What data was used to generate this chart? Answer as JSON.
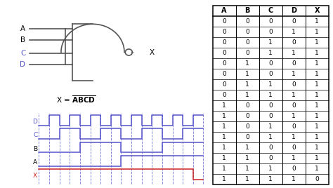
{
  "bg_color": "#ffffff",
  "gate_color": "#555555",
  "blue_color": "#5555cc",
  "red_color": "#cc2222",
  "truth_table": {
    "headers": [
      "A",
      "B",
      "C",
      "D",
      "X"
    ],
    "rows": [
      [
        0,
        0,
        0,
        0,
        1
      ],
      [
        0,
        0,
        0,
        1,
        1
      ],
      [
        0,
        0,
        1,
        0,
        1
      ],
      [
        0,
        0,
        1,
        1,
        1
      ],
      [
        0,
        1,
        0,
        0,
        1
      ],
      [
        0,
        1,
        0,
        1,
        1
      ],
      [
        0,
        1,
        1,
        0,
        1
      ],
      [
        0,
        1,
        1,
        1,
        1
      ],
      [
        1,
        0,
        0,
        0,
        1
      ],
      [
        1,
        0,
        0,
        1,
        1
      ],
      [
        1,
        0,
        1,
        0,
        1
      ],
      [
        1,
        0,
        1,
        1,
        1
      ],
      [
        1,
        1,
        0,
        0,
        1
      ],
      [
        1,
        1,
        0,
        1,
        1
      ],
      [
        1,
        1,
        1,
        0,
        1
      ],
      [
        1,
        1,
        1,
        1,
        0
      ]
    ]
  },
  "timing": {
    "n_steps": 16,
    "D": [
      0,
      1,
      0,
      1,
      0,
      1,
      0,
      1,
      0,
      1,
      0,
      1,
      0,
      1,
      0,
      1
    ],
    "C": [
      0,
      0,
      1,
      1,
      0,
      0,
      1,
      1,
      0,
      0,
      1,
      1,
      0,
      0,
      1,
      1
    ],
    "B": [
      0,
      0,
      0,
      0,
      1,
      1,
      1,
      1,
      0,
      0,
      0,
      0,
      1,
      1,
      1,
      1
    ],
    "A": [
      0,
      0,
      0,
      0,
      0,
      0,
      0,
      0,
      1,
      1,
      1,
      1,
      1,
      1,
      1,
      1
    ],
    "X": [
      1,
      1,
      1,
      1,
      1,
      1,
      1,
      1,
      1,
      1,
      1,
      1,
      1,
      1,
      1,
      0
    ]
  }
}
